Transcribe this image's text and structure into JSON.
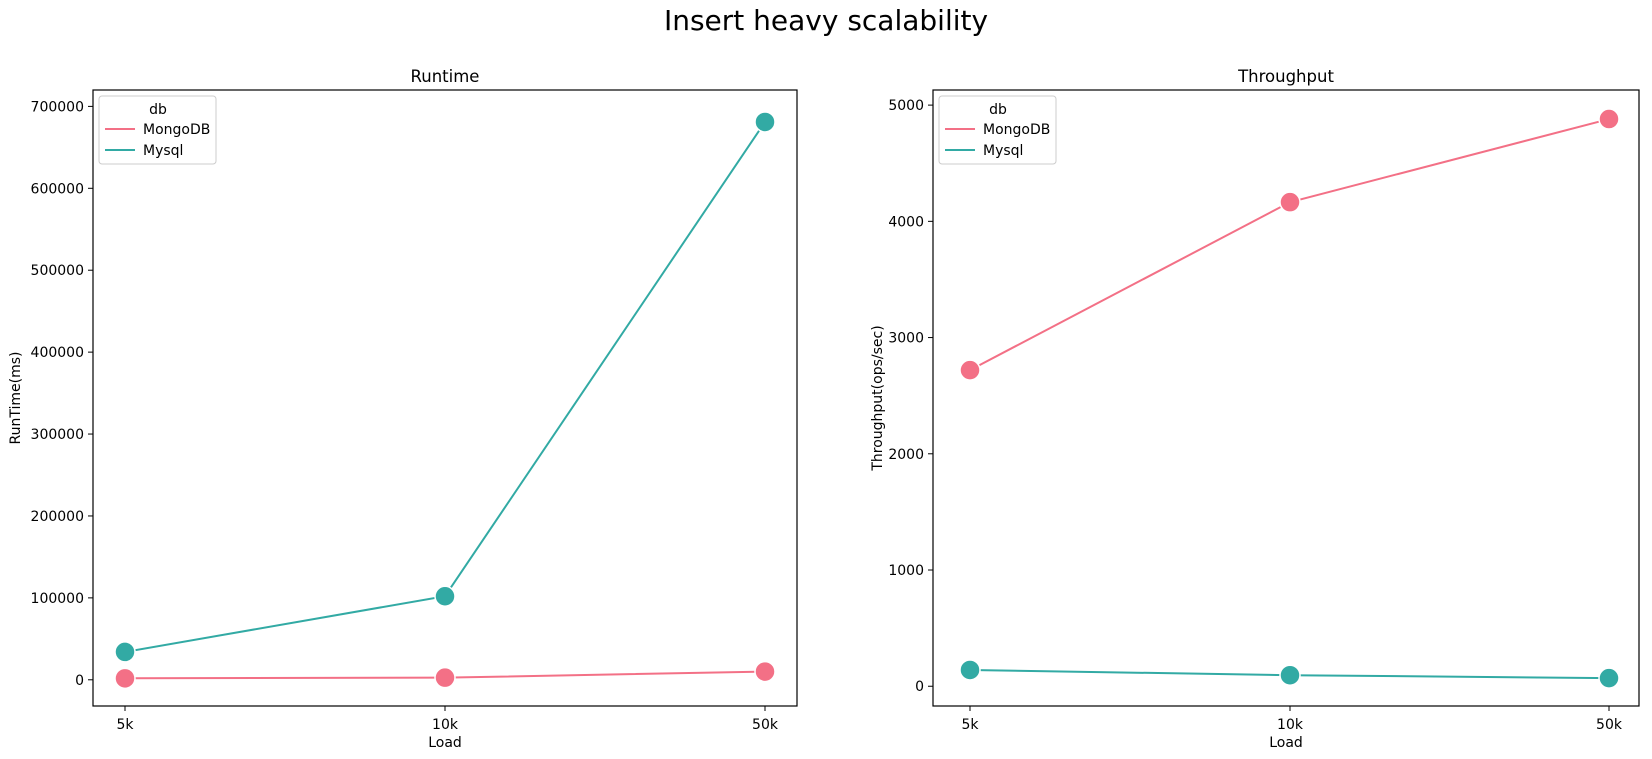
{
  "suptitle": "Insert heavy scalability",
  "colors": {
    "MongoDB": "#f37086",
    "Mysql": "#32aaa4"
  },
  "chart_data": [
    {
      "type": "line",
      "title": "Runtime",
      "xlabel": "Load",
      "ylabel": "RunTime(ms)",
      "categories": [
        "5k",
        "10k",
        "50k"
      ],
      "ylim": [
        -32000,
        720000
      ],
      "yticks": [
        0,
        100000,
        200000,
        300000,
        400000,
        500000,
        600000,
        700000
      ],
      "legend": {
        "title": "db",
        "placement": "top-left"
      },
      "series": [
        {
          "name": "MongoDB",
          "values": [
            1800,
            2600,
            10000
          ]
        },
        {
          "name": "Mysql",
          "values": [
            34000,
            102000,
            681000
          ]
        }
      ]
    },
    {
      "type": "line",
      "title": "Throughput",
      "xlabel": "Load",
      "ylabel": "Throughput(ops/sec)",
      "categories": [
        "5k",
        "10k",
        "50k"
      ],
      "ylim": [
        -170,
        5130
      ],
      "yticks": [
        0,
        1000,
        2000,
        3000,
        4000,
        5000
      ],
      "legend": {
        "title": "db",
        "placement": "top-left"
      },
      "series": [
        {
          "name": "MongoDB",
          "values": [
            2720,
            4165,
            4880
          ]
        },
        {
          "name": "Mysql",
          "values": [
            140,
            95,
            70
          ]
        }
      ]
    }
  ]
}
